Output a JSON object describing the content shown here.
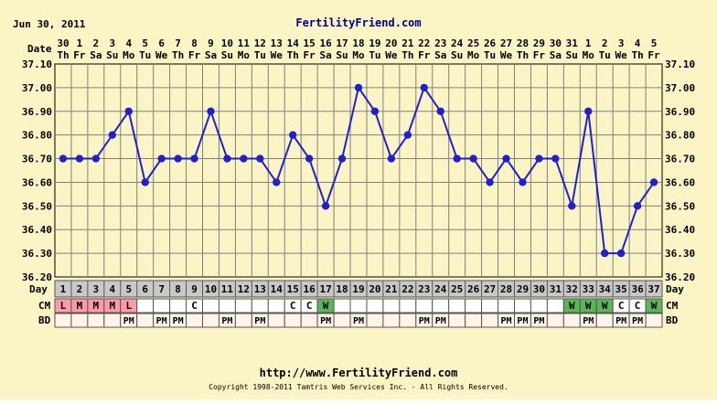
{
  "header": {
    "date_text": "Jun 30, 2011",
    "site_name": "FertilityFriend.com",
    "date_label": "Date"
  },
  "footer": {
    "url": "http://www.FertilityFriend.com",
    "copyright": "Copyright 1998-2011 Tamtris Web Services Inc. - All Rights Reserved."
  },
  "colors": {
    "background": "#fbf4c4",
    "grid": "#808080",
    "line": "#2020d0",
    "day_row": "#c8c8c8",
    "menstruation_cell": "#ff9aa8",
    "fertile_cell": "#58b858",
    "empty_cell": "#ffffff",
    "bd_cell": "#fff4e8"
  },
  "chart_data": {
    "type": "line",
    "title": "",
    "xlabel": "",
    "ylabel": "",
    "ylim": [
      36.2,
      37.1
    ],
    "yticks": [
      "36.20",
      "36.30",
      "36.40",
      "36.50",
      "36.60",
      "36.70",
      "36.80",
      "36.90",
      "37.00",
      "37.10"
    ],
    "dates": [
      "30",
      "1",
      "2",
      "3",
      "4",
      "5",
      "6",
      "7",
      "8",
      "9",
      "10",
      "11",
      "12",
      "13",
      "14",
      "15",
      "16",
      "17",
      "18",
      "19",
      "20",
      "21",
      "22",
      "23",
      "24",
      "25",
      "26",
      "27",
      "28",
      "29",
      "30",
      "31",
      "1",
      "2",
      "3",
      "4",
      "5"
    ],
    "weekdays": [
      "Th",
      "Fr",
      "Sa",
      "Su",
      "Mo",
      "Tu",
      "We",
      "Th",
      "Fr",
      "Sa",
      "Su",
      "Mo",
      "Tu",
      "We",
      "Th",
      "Fr",
      "Sa",
      "Su",
      "Mo",
      "Tu",
      "We",
      "Th",
      "Fr",
      "Sa",
      "Su",
      "Mo",
      "Tu",
      "We",
      "Th",
      "Fr",
      "Sa",
      "Su",
      "Mo",
      "Tu",
      "We",
      "Th",
      "Fr"
    ],
    "cycle_days": [
      "1",
      "2",
      "3",
      "4",
      "5",
      "6",
      "7",
      "8",
      "9",
      "10",
      "11",
      "12",
      "13",
      "14",
      "15",
      "16",
      "17",
      "18",
      "19",
      "20",
      "21",
      "22",
      "23",
      "24",
      "25",
      "26",
      "27",
      "28",
      "29",
      "30",
      "31",
      "32",
      "33",
      "34",
      "35",
      "36",
      "37"
    ],
    "series": [
      {
        "values": [
          36.7,
          36.7,
          36.7,
          36.8,
          36.9,
          36.6,
          36.7,
          36.7,
          36.7,
          36.9,
          36.7,
          36.7,
          36.7,
          36.6,
          36.8,
          36.7,
          36.5,
          36.7,
          37.0,
          36.9,
          36.7,
          36.8,
          37.0,
          36.9,
          36.7,
          36.7,
          36.6,
          36.7,
          36.6,
          36.7,
          36.7,
          36.5,
          36.9,
          36.3,
          36.3,
          36.5,
          36.6
        ]
      }
    ],
    "rows": {
      "day_label": "Day",
      "cm_label": "CM",
      "bd_label": "BD",
      "cm": [
        "L",
        "M",
        "M",
        "M",
        "L",
        "",
        "",
        "",
        "C",
        "",
        "",
        "",
        "",
        "",
        "C",
        "C",
        "W",
        "",
        "",
        "",
        "",
        "",
        "",
        "",
        "",
        "",
        "",
        "",
        "",
        "",
        "",
        "W",
        "W",
        "W",
        "C",
        "C",
        "W"
      ],
      "cm_type": [
        "m",
        "m",
        "m",
        "m",
        "m",
        "",
        "",
        "",
        "",
        "",
        "",
        "",
        "",
        "",
        "",
        "",
        "f",
        "",
        "",
        "",
        "",
        "",
        "",
        "",
        "",
        "",
        "",
        "",
        "",
        "",
        "",
        "f",
        "f",
        "f",
        "",
        "",
        "f"
      ],
      "bd": [
        "",
        "",
        "",
        "",
        "PM",
        "",
        "PM",
        "PM",
        "",
        "",
        "PM",
        "",
        "PM",
        "",
        "",
        "",
        "PM",
        "",
        "PM",
        "",
        "",
        "",
        "PM",
        "PM",
        "",
        "",
        "",
        "PM",
        "PM",
        "PM",
        "",
        "",
        "PM",
        "",
        "PM",
        "PM",
        ""
      ]
    }
  }
}
